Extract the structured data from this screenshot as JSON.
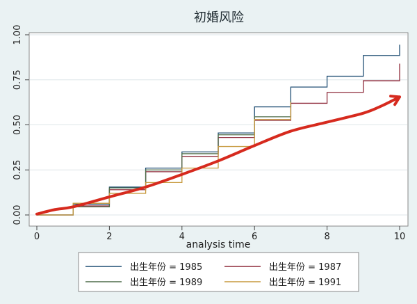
{
  "chart_data": {
    "type": "line",
    "step": true,
    "title": "初婚风险",
    "xlabel": "analysis time",
    "ylabel": "",
    "xlim": [
      0,
      10
    ],
    "ylim": [
      0,
      1
    ],
    "x_ticks": [
      "0",
      "2",
      "4",
      "6",
      "8",
      "10"
    ],
    "y_ticks": [
      "0.00",
      "0.25",
      "0.50",
      "0.75",
      "1.00"
    ],
    "grid": true,
    "legend_position": "bottom",
    "series": [
      {
        "name": "出生年份 = 1985",
        "color": "#1f4e73",
        "x": [
          0,
          1,
          2,
          3,
          4,
          5,
          6,
          7,
          8,
          9,
          10
        ],
        "y": [
          0.0,
          0.06,
          0.155,
          0.26,
          0.35,
          0.455,
          0.6,
          0.71,
          0.77,
          0.885,
          0.945
        ]
      },
      {
        "name": "出生年份 = 1987",
        "color": "#8e2a3a",
        "x": [
          0,
          1,
          2,
          3,
          4,
          5,
          6,
          7,
          8,
          9,
          10
        ],
        "y": [
          0.0,
          0.05,
          0.14,
          0.24,
          0.325,
          0.43,
          0.525,
          0.62,
          0.68,
          0.745,
          0.84
        ]
      },
      {
        "name": "出生年份 = 1989",
        "color": "#4f6d4a",
        "x": [
          0,
          1,
          2,
          3,
          4,
          5,
          6,
          7
        ],
        "y": [
          0.0,
          0.045,
          0.15,
          0.25,
          0.34,
          0.445,
          0.545,
          0.635
        ]
      },
      {
        "name": "出生年份 = 1991",
        "color": "#c79a3e",
        "x": [
          0,
          1,
          2,
          3,
          4,
          5,
          6,
          7
        ],
        "y": [
          0.0,
          0.065,
          0.12,
          0.18,
          0.26,
          0.38,
          0.53,
          0.625
        ]
      }
    ],
    "annotation": {
      "type": "trend-arrow",
      "color": "#d62a1e",
      "x": [
        0,
        0.5,
        1,
        2,
        3,
        4,
        5,
        6,
        7,
        8,
        9,
        9.5,
        10
      ],
      "y": [
        0.005,
        0.03,
        0.045,
        0.1,
        0.155,
        0.225,
        0.3,
        0.385,
        0.465,
        0.515,
        0.565,
        0.605,
        0.655
      ]
    }
  }
}
